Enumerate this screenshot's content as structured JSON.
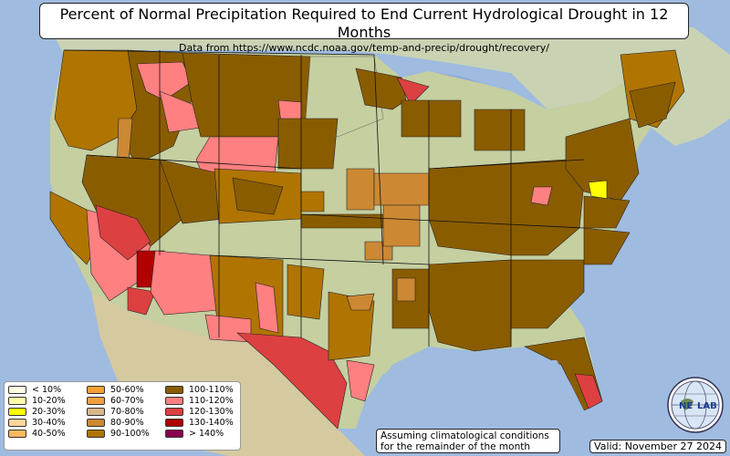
{
  "title": "Percent of Normal Precipitation Required to End Current Hydrological Drought in 12 Months",
  "subtitle": "Data from https://www.ncdc.noaa.gov/temp-and-precip/drought/recovery/",
  "legend": [
    {
      "label": "< 10%",
      "color": "#fffde0"
    },
    {
      "label": "10-20%",
      "color": "#ffffa8"
    },
    {
      "label": "20-30%",
      "color": "#ffff00"
    },
    {
      "label": "30-40%",
      "color": "#ffd59a"
    },
    {
      "label": "40-50%",
      "color": "#ffb860"
    },
    {
      "label": "50-60%",
      "color": "#f5a033"
    },
    {
      "label": "60-70%",
      "color": "#f0a040"
    },
    {
      "label": "70-80%",
      "color": "#d9b88c"
    },
    {
      "label": "80-90%",
      "color": "#cc8833"
    },
    {
      "label": "90-100%",
      "color": "#b07400"
    },
    {
      "label": "100-110%",
      "color": "#8a5c00"
    },
    {
      "label": "110-120%",
      "color": "#ff8080"
    },
    {
      "label": "120-130%",
      "color": "#dc4040"
    },
    {
      "label": "130-140%",
      "color": "#b00000"
    },
    {
      "label": "> 140%",
      "color": "#8b0050"
    }
  ],
  "note": {
    "line1": "Assuming climatological conditions",
    "line2": "for the remainder of the month"
  },
  "valid": "Valid: November 27 2024",
  "logo": {
    "text_left": "NE",
    "text_right": "LAB",
    "icon": "globe-logo-icon"
  }
}
